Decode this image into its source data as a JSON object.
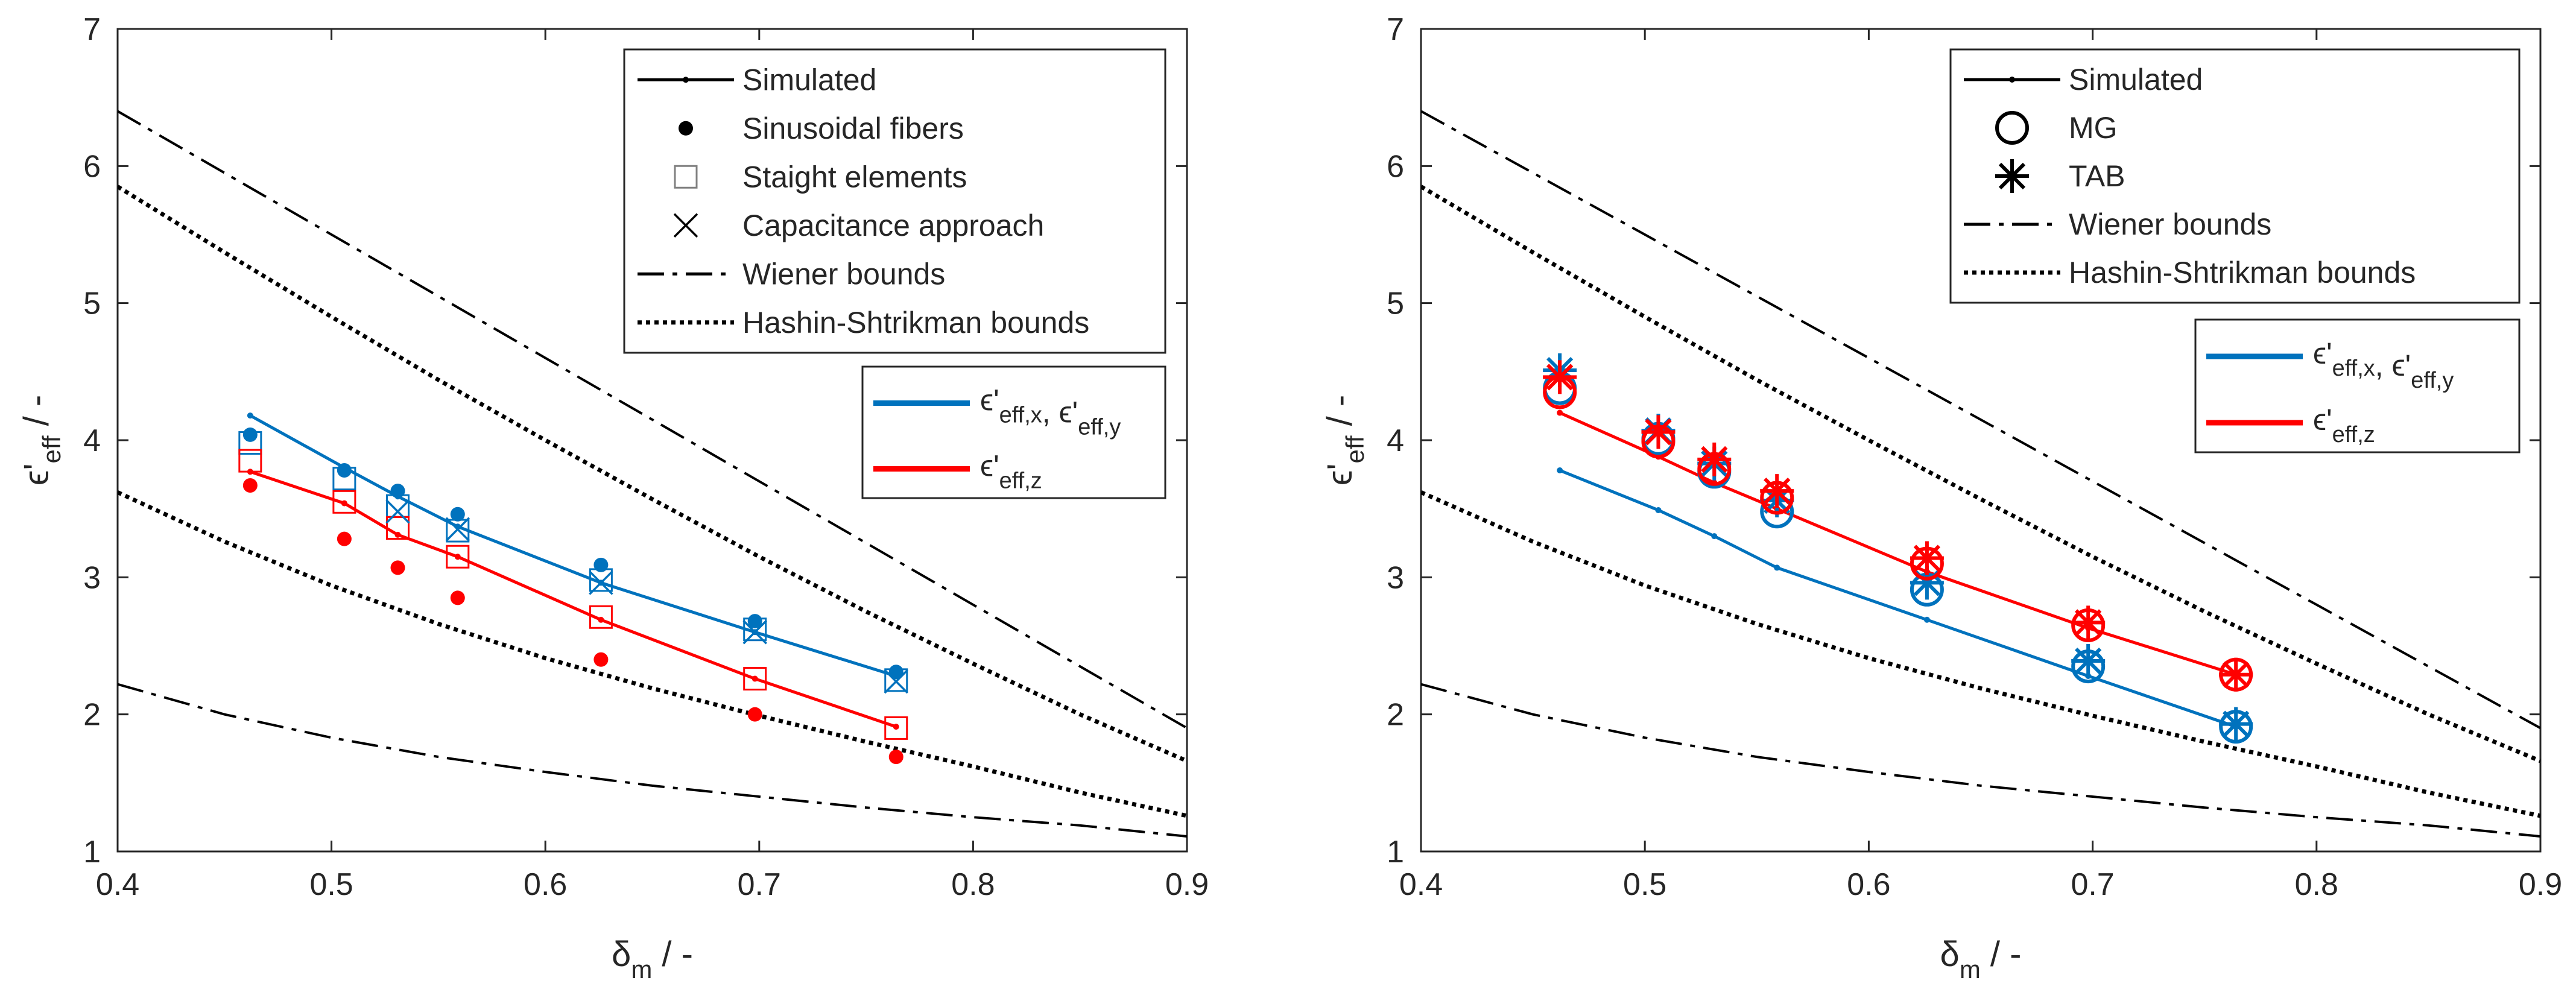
{
  "colors": {
    "blue": "#0072BD",
    "red": "#FF0000",
    "black": "#000000",
    "axis": "#262626"
  },
  "chart_data": [
    {
      "type": "line",
      "panel": "left",
      "xlim": [
        0.4,
        0.9
      ],
      "ylim": [
        1,
        7
      ],
      "xticks": [
        "0.4",
        "0.5",
        "0.6",
        "0.7",
        "0.8",
        "0.9"
      ],
      "yticks": [
        "1",
        "2",
        "3",
        "4",
        "5",
        "6",
        "7"
      ],
      "xlabel": {
        "main": "δ",
        "sub": "m",
        "unit": " / -"
      },
      "ylabel": {
        "main": "ϵ'",
        "sub": "eff",
        "unit": " / -"
      },
      "legend_main": {
        "position": "top-right",
        "entries": [
          "Simulated",
          "Sinusoidal fibers",
          "Staight elements",
          "Capacitance approach",
          "Wiener bounds",
          "Hashin-Shtrikman bounds"
        ]
      },
      "legend_colors": {
        "position": "upper-right",
        "entries": [
          {
            "color": "blue",
            "parts": [
              [
                "ϵ'",
                "eff,x"
              ],
              [
                "ϵ'",
                "eff,y"
              ]
            ]
          },
          {
            "color": "red",
            "parts": [
              [
                "ϵ'",
                "eff,z"
              ]
            ]
          }
        ]
      },
      "bounds": {
        "wiener_upper": {
          "x": [
            0.4,
            0.5,
            0.6,
            0.7,
            0.8,
            0.9
          ],
          "y": [
            6.4,
            5.5,
            4.6,
            3.7,
            2.8,
            1.9
          ]
        },
        "wiener_lower": {
          "x": [
            0.4,
            0.45,
            0.5,
            0.55,
            0.6,
            0.65,
            0.7,
            0.75,
            0.8,
            0.85,
            0.9
          ],
          "y": [
            2.22,
            2.0,
            1.83,
            1.69,
            1.58,
            1.48,
            1.4,
            1.32,
            1.25,
            1.19,
            1.11
          ]
        },
        "hs_upper": {
          "x": [
            0.4,
            0.45,
            0.5,
            0.55,
            0.6,
            0.65,
            0.7,
            0.75,
            0.8,
            0.85,
            0.9
          ],
          "y": [
            5.85,
            5.37,
            4.9,
            4.44,
            4.0,
            3.57,
            3.15,
            2.75,
            2.37,
            2.0,
            1.66
          ]
        },
        "hs_lower": {
          "x": [
            0.4,
            0.45,
            0.5,
            0.55,
            0.6,
            0.65,
            0.7,
            0.75,
            0.8,
            0.85,
            0.9
          ],
          "y": [
            3.62,
            3.26,
            2.94,
            2.66,
            2.41,
            2.19,
            1.99,
            1.8,
            1.62,
            1.43,
            1.26
          ]
        }
      },
      "series": [
        {
          "name": "Simulated xy",
          "color": "blue",
          "x": [
            0.462,
            0.506,
            0.531,
            0.559,
            0.626,
            0.698,
            0.764
          ],
          "y": [
            4.18,
            3.8,
            3.59,
            3.37,
            2.96,
            2.6,
            2.28
          ]
        },
        {
          "name": "Simulated z",
          "color": "red",
          "x": [
            0.462,
            0.506,
            0.531,
            0.559,
            0.626,
            0.698,
            0.764
          ],
          "y": [
            3.77,
            3.54,
            3.31,
            3.15,
            2.69,
            2.26,
            1.91
          ]
        }
      ],
      "markers": [
        {
          "name": "Sinusoidal fibers xy",
          "marker": "dot",
          "color": "blue",
          "x": [
            0.462,
            0.506,
            0.531,
            0.559,
            0.626,
            0.698,
            0.764
          ],
          "y": [
            4.04,
            3.78,
            3.63,
            3.46,
            3.09,
            2.68,
            2.31
          ]
        },
        {
          "name": "Sinusoidal fibers z",
          "marker": "dot",
          "color": "red",
          "x": [
            0.462,
            0.506,
            0.531,
            0.559,
            0.626,
            0.698,
            0.764
          ],
          "y": [
            3.67,
            3.28,
            3.07,
            2.85,
            2.4,
            2.0,
            1.69
          ]
        },
        {
          "name": "Straight elements xy",
          "marker": "square",
          "color": "blue",
          "x": [
            0.462,
            0.506,
            0.531,
            0.559,
            0.626,
            0.698,
            0.764
          ],
          "y": [
            3.98,
            3.72,
            3.52,
            3.34,
            2.98,
            2.62,
            2.25
          ]
        },
        {
          "name": "Straight elements z",
          "marker": "square",
          "color": "red",
          "x": [
            0.462,
            0.506,
            0.531,
            0.559,
            0.626,
            0.698,
            0.764
          ],
          "y": [
            3.85,
            3.55,
            3.36,
            3.15,
            2.71,
            2.26,
            1.9
          ]
        },
        {
          "name": "Capacitance approach xy",
          "marker": "x",
          "color": "blue",
          "x": [
            0.531,
            0.559,
            0.626,
            0.698,
            0.764
          ],
          "y": [
            3.48,
            3.35,
            2.96,
            2.6,
            2.24
          ]
        }
      ]
    },
    {
      "type": "line",
      "panel": "right",
      "xlim": [
        0.4,
        0.9
      ],
      "ylim": [
        1,
        7
      ],
      "xticks": [
        "0.4",
        "0.5",
        "0.6",
        "0.7",
        "0.8",
        "0.9"
      ],
      "yticks": [
        "1",
        "2",
        "3",
        "4",
        "5",
        "6",
        "7"
      ],
      "xlabel": {
        "main": "δ",
        "sub": "m",
        "unit": " / -"
      },
      "ylabel": {
        "main": "ϵ'",
        "sub": "eff",
        "unit": " / -"
      },
      "legend_main": {
        "position": "top-right",
        "entries": [
          "Simulated",
          "MG",
          "TAB",
          "Wiener bounds",
          "Hashin-Shtrikman bounds"
        ]
      },
      "legend_colors": {
        "position": "upper-right",
        "entries": [
          {
            "color": "blue",
            "parts": [
              [
                "ϵ'",
                "eff,x"
              ],
              [
                "ϵ'",
                "eff,y"
              ]
            ]
          },
          {
            "color": "red",
            "parts": [
              [
                "ϵ'",
                "eff,z"
              ]
            ]
          }
        ]
      },
      "bounds": {
        "wiener_upper": {
          "x": [
            0.4,
            0.5,
            0.6,
            0.7,
            0.8,
            0.9
          ],
          "y": [
            6.4,
            5.5,
            4.6,
            3.7,
            2.8,
            1.9
          ]
        },
        "wiener_lower": {
          "x": [
            0.4,
            0.45,
            0.5,
            0.55,
            0.6,
            0.65,
            0.7,
            0.75,
            0.8,
            0.85,
            0.9
          ],
          "y": [
            2.22,
            2.0,
            1.83,
            1.69,
            1.58,
            1.48,
            1.4,
            1.32,
            1.25,
            1.19,
            1.11
          ]
        },
        "hs_upper": {
          "x": [
            0.4,
            0.45,
            0.5,
            0.55,
            0.6,
            0.65,
            0.7,
            0.75,
            0.8,
            0.85,
            0.9
          ],
          "y": [
            5.85,
            5.37,
            4.9,
            4.44,
            4.0,
            3.57,
            3.15,
            2.75,
            2.37,
            2.0,
            1.66
          ]
        },
        "hs_lower": {
          "x": [
            0.4,
            0.45,
            0.5,
            0.55,
            0.6,
            0.65,
            0.7,
            0.75,
            0.8,
            0.85,
            0.9
          ],
          "y": [
            3.62,
            3.26,
            2.94,
            2.66,
            2.41,
            2.19,
            1.99,
            1.8,
            1.62,
            1.43,
            1.26
          ]
        }
      },
      "series": [
        {
          "name": "Simulated xy",
          "color": "blue",
          "x": [
            0.462,
            0.506,
            0.531,
            0.559,
            0.626,
            0.698,
            0.764
          ],
          "y": [
            3.78,
            3.49,
            3.3,
            3.07,
            2.69,
            2.28,
            1.91
          ]
        },
        {
          "name": "Simulated z",
          "color": "red",
          "x": [
            0.462,
            0.506,
            0.531,
            0.559,
            0.626,
            0.698,
            0.764
          ],
          "y": [
            4.2,
            3.88,
            3.69,
            3.5,
            3.04,
            2.63,
            2.29
          ]
        }
      ],
      "markers": [
        {
          "name": "MG xy",
          "marker": "circle",
          "color": "blue",
          "x": [
            0.462,
            0.506,
            0.531,
            0.559,
            0.626,
            0.698,
            0.764
          ],
          "y": [
            4.38,
            4.01,
            3.77,
            3.48,
            2.91,
            2.35,
            1.91
          ]
        },
        {
          "name": "TAB xy",
          "marker": "asterisk",
          "color": "blue",
          "x": [
            0.462,
            0.506,
            0.531,
            0.559,
            0.626,
            0.698,
            0.764
          ],
          "y": [
            4.51,
            4.07,
            3.83,
            3.56,
            2.96,
            2.39,
            1.93
          ]
        },
        {
          "name": "MG z",
          "marker": "circle",
          "color": "red",
          "x": [
            0.462,
            0.506,
            0.531,
            0.559,
            0.626,
            0.698,
            0.764
          ],
          "y": [
            4.35,
            3.99,
            3.79,
            3.58,
            3.1,
            2.65,
            2.29
          ]
        },
        {
          "name": "TAB z",
          "marker": "asterisk",
          "color": "red",
          "x": [
            0.462,
            0.506,
            0.531,
            0.559,
            0.626,
            0.698,
            0.764
          ],
          "y": [
            4.46,
            4.06,
            3.86,
            3.63,
            3.14,
            2.67,
            2.29
          ]
        }
      ]
    }
  ]
}
